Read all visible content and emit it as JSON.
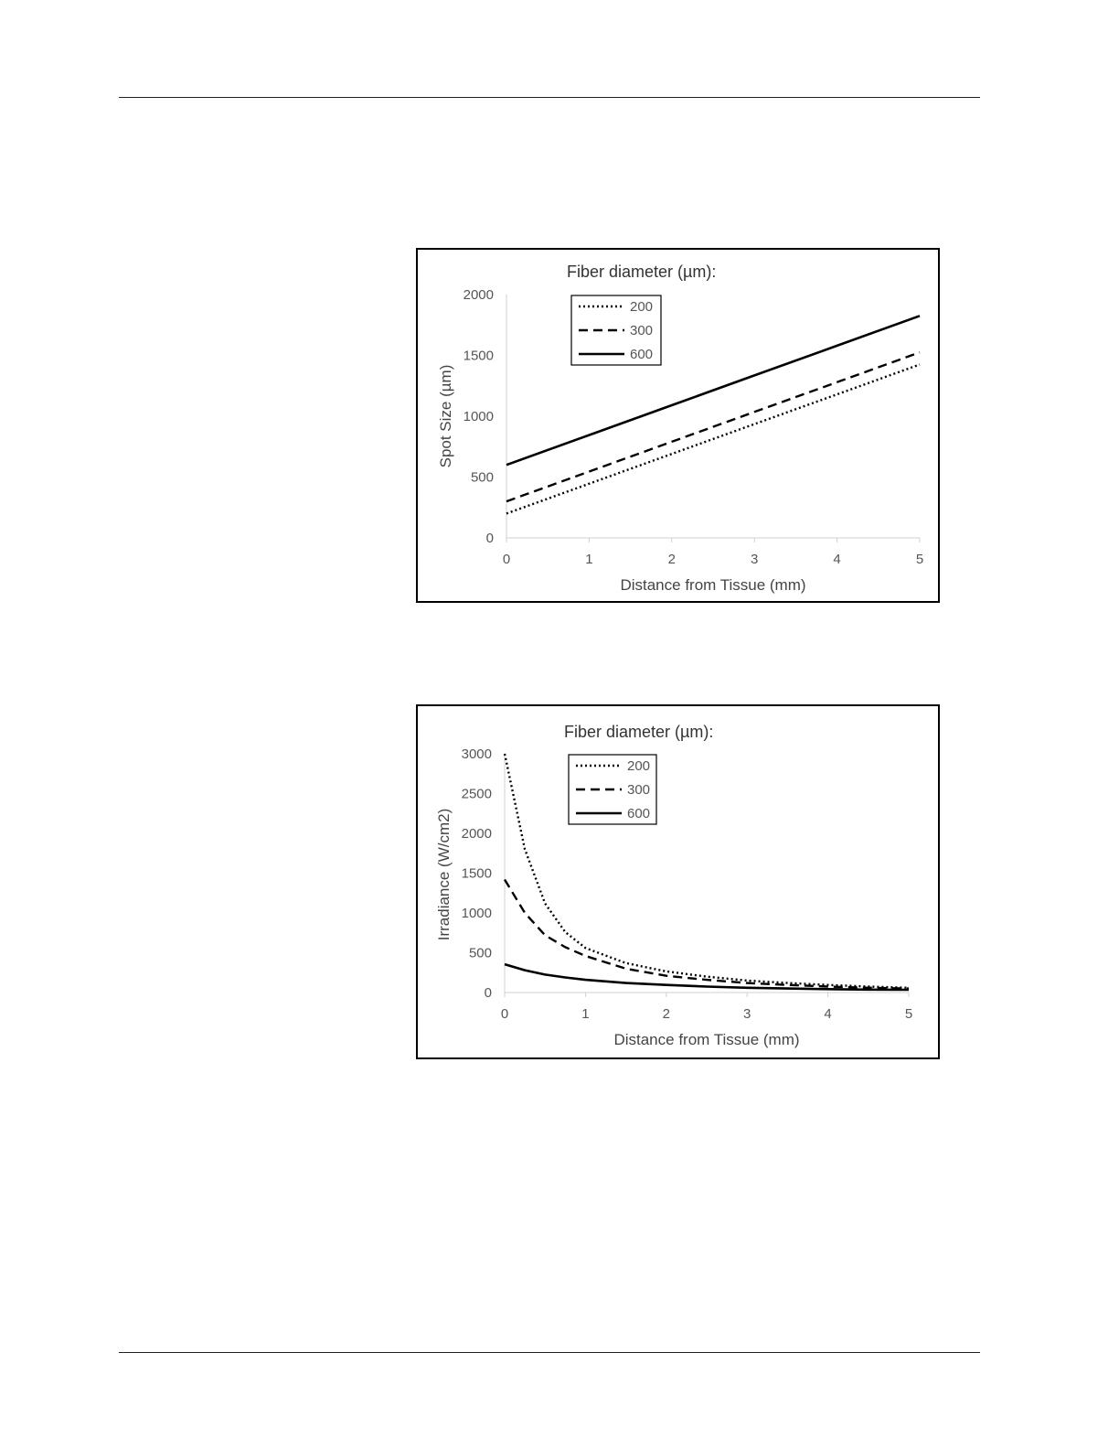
{
  "chart_data": [
    {
      "type": "line",
      "title": "Fiber diameter (µm):",
      "xlabel": "Distance from Tissue (mm)",
      "ylabel": "Spot Size (µm)",
      "xlim": [
        0,
        5
      ],
      "ylim": [
        0,
        2000
      ],
      "x_ticks": [
        "0",
        "1",
        "2",
        "3",
        "4",
        "5"
      ],
      "y_ticks": [
        "0",
        "500",
        "1000",
        "1500",
        "2000"
      ],
      "grid": false,
      "legend_position": "top-left",
      "x": [
        0,
        1,
        2,
        3,
        4,
        5
      ],
      "series": [
        {
          "name": "200",
          "style": "dotted",
          "values": [
            200,
            445,
            690,
            935,
            1180,
            1425
          ]
        },
        {
          "name": "300",
          "style": "dashed",
          "values": [
            300,
            545,
            790,
            1035,
            1280,
            1525
          ]
        },
        {
          "name": "600",
          "style": "solid",
          "values": [
            600,
            845,
            1090,
            1335,
            1580,
            1825
          ]
        }
      ]
    },
    {
      "type": "line",
      "title": "Fiber diameter (µm):",
      "xlabel": "Distance from Tissue (mm)",
      "ylabel": "Irradiance (W/cm2)",
      "xlim": [
        0,
        5
      ],
      "ylim": [
        0,
        3000
      ],
      "x_ticks": [
        "0",
        "1",
        "2",
        "3",
        "4",
        "5"
      ],
      "y_ticks": [
        "0",
        "500",
        "1000",
        "1500",
        "2000",
        "2500",
        "3000"
      ],
      "grid": false,
      "legend_position": "top-left",
      "x": [
        0,
        0.25,
        0.5,
        0.75,
        1,
        1.5,
        2,
        2.5,
        3,
        3.5,
        4,
        4.5,
        5
      ],
      "series": [
        {
          "name": "200",
          "style": "dotted",
          "values": [
            3000,
            1800,
            1120,
            760,
            560,
            370,
            265,
            200,
            150,
            120,
            95,
            75,
            60
          ]
        },
        {
          "name": "300",
          "style": "dashed",
          "values": [
            1420,
            1000,
            720,
            570,
            460,
            300,
            210,
            160,
            120,
            95,
            75,
            60,
            50
          ]
        },
        {
          "name": "600",
          "style": "solid",
          "values": [
            355,
            280,
            225,
            190,
            160,
            120,
            95,
            75,
            60,
            50,
            42,
            37,
            35
          ]
        }
      ]
    }
  ]
}
